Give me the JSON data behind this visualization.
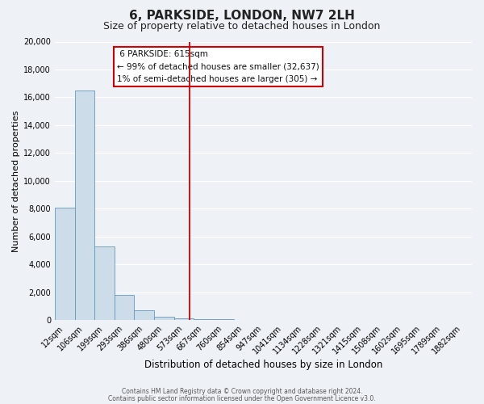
{
  "title": "6, PARKSIDE, LONDON, NW7 2LH",
  "subtitle": "Size of property relative to detached houses in London",
  "xlabel": "Distribution of detached houses by size in London",
  "ylabel": "Number of detached properties",
  "bar_labels": [
    "12sqm",
    "106sqm",
    "199sqm",
    "293sqm",
    "386sqm",
    "480sqm",
    "573sqm",
    "667sqm",
    "760sqm",
    "854sqm",
    "947sqm",
    "1041sqm",
    "1134sqm",
    "1228sqm",
    "1321sqm",
    "1415sqm",
    "1508sqm",
    "1602sqm",
    "1695sqm",
    "1789sqm",
    "1882sqm"
  ],
  "bar_heights": [
    8100,
    16500,
    5300,
    1800,
    700,
    250,
    150,
    100,
    50,
    0,
    0,
    0,
    0,
    0,
    0,
    0,
    0,
    0,
    0,
    0,
    0
  ],
  "bar_color": "#ccdce8",
  "bar_edge_color": "#6699bb",
  "ylim": [
    0,
    20000
  ],
  "yticks": [
    0,
    2000,
    4000,
    6000,
    8000,
    10000,
    12000,
    14000,
    16000,
    18000,
    20000
  ],
  "red_line_x": 6.27,
  "annotation_title": "6 PARKSIDE: 615sqm",
  "annotation_line1": "← 99% of detached houses are smaller (32,637)",
  "annotation_line2": "1% of semi-detached houses are larger (305) →",
  "annotation_box_color": "#ffffff",
  "annotation_box_edge_color": "#cc0000",
  "footer_line1": "Contains HM Land Registry data © Crown copyright and database right 2024.",
  "footer_line2": "Contains public sector information licensed under the Open Government Licence v3.0.",
  "bg_color": "#eef2f7",
  "grid_color": "#ffffff",
  "title_fontsize": 11,
  "subtitle_fontsize": 9,
  "tick_fontsize": 7,
  "ylabel_fontsize": 8,
  "xlabel_fontsize": 8.5
}
